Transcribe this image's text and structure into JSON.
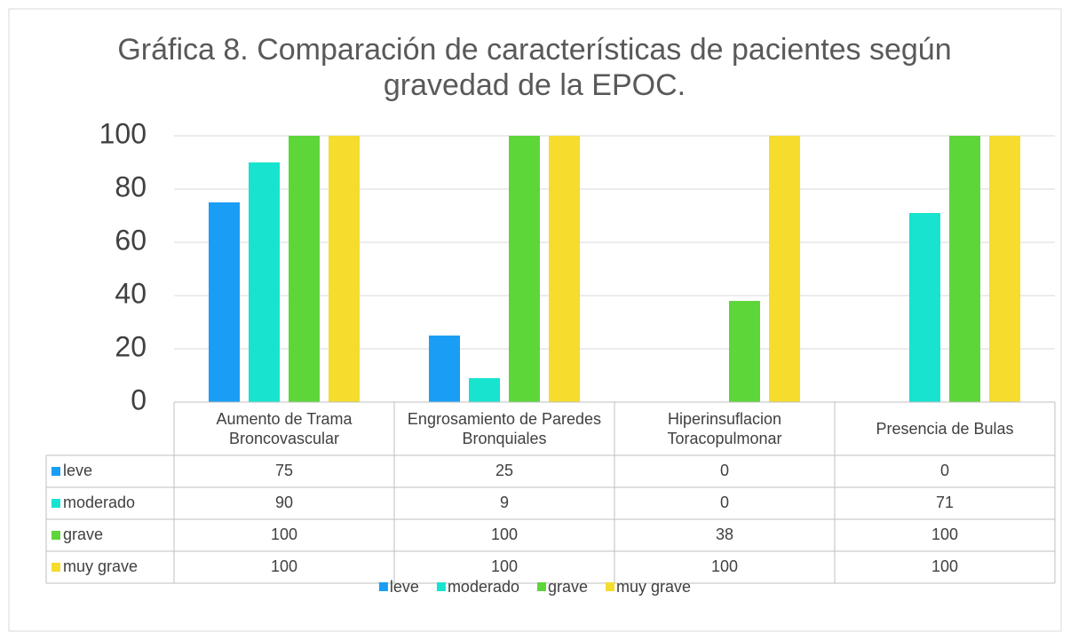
{
  "chart_data": {
    "type": "bar",
    "title": "Gráfica 8. Comparación de características de pacientes según gravedad de la EPOC.",
    "categories": [
      "Aumento de Trama Broncovascular",
      "Engrosamiento de Paredes Bronquiales",
      "Hiperinsuflacion Toracopulmonar",
      "Presencia de Bulas"
    ],
    "series": [
      {
        "name": "leve",
        "color": "#1a9ef5",
        "values": [
          75,
          25,
          0,
          0
        ]
      },
      {
        "name": "moderado",
        "color": "#17e3cf",
        "values": [
          90,
          9,
          0,
          71
        ]
      },
      {
        "name": "grave",
        "color": "#5dd63a",
        "values": [
          100,
          100,
          38,
          100
        ]
      },
      {
        "name": "muy grave",
        "color": "#f5dc2d",
        "values": [
          100,
          100,
          100,
          100
        ]
      }
    ],
    "ylim": [
      0,
      100
    ],
    "yticks": [
      0,
      20,
      40,
      60,
      80,
      100
    ],
    "grid": true,
    "legend": "bottom",
    "data_table": true
  }
}
